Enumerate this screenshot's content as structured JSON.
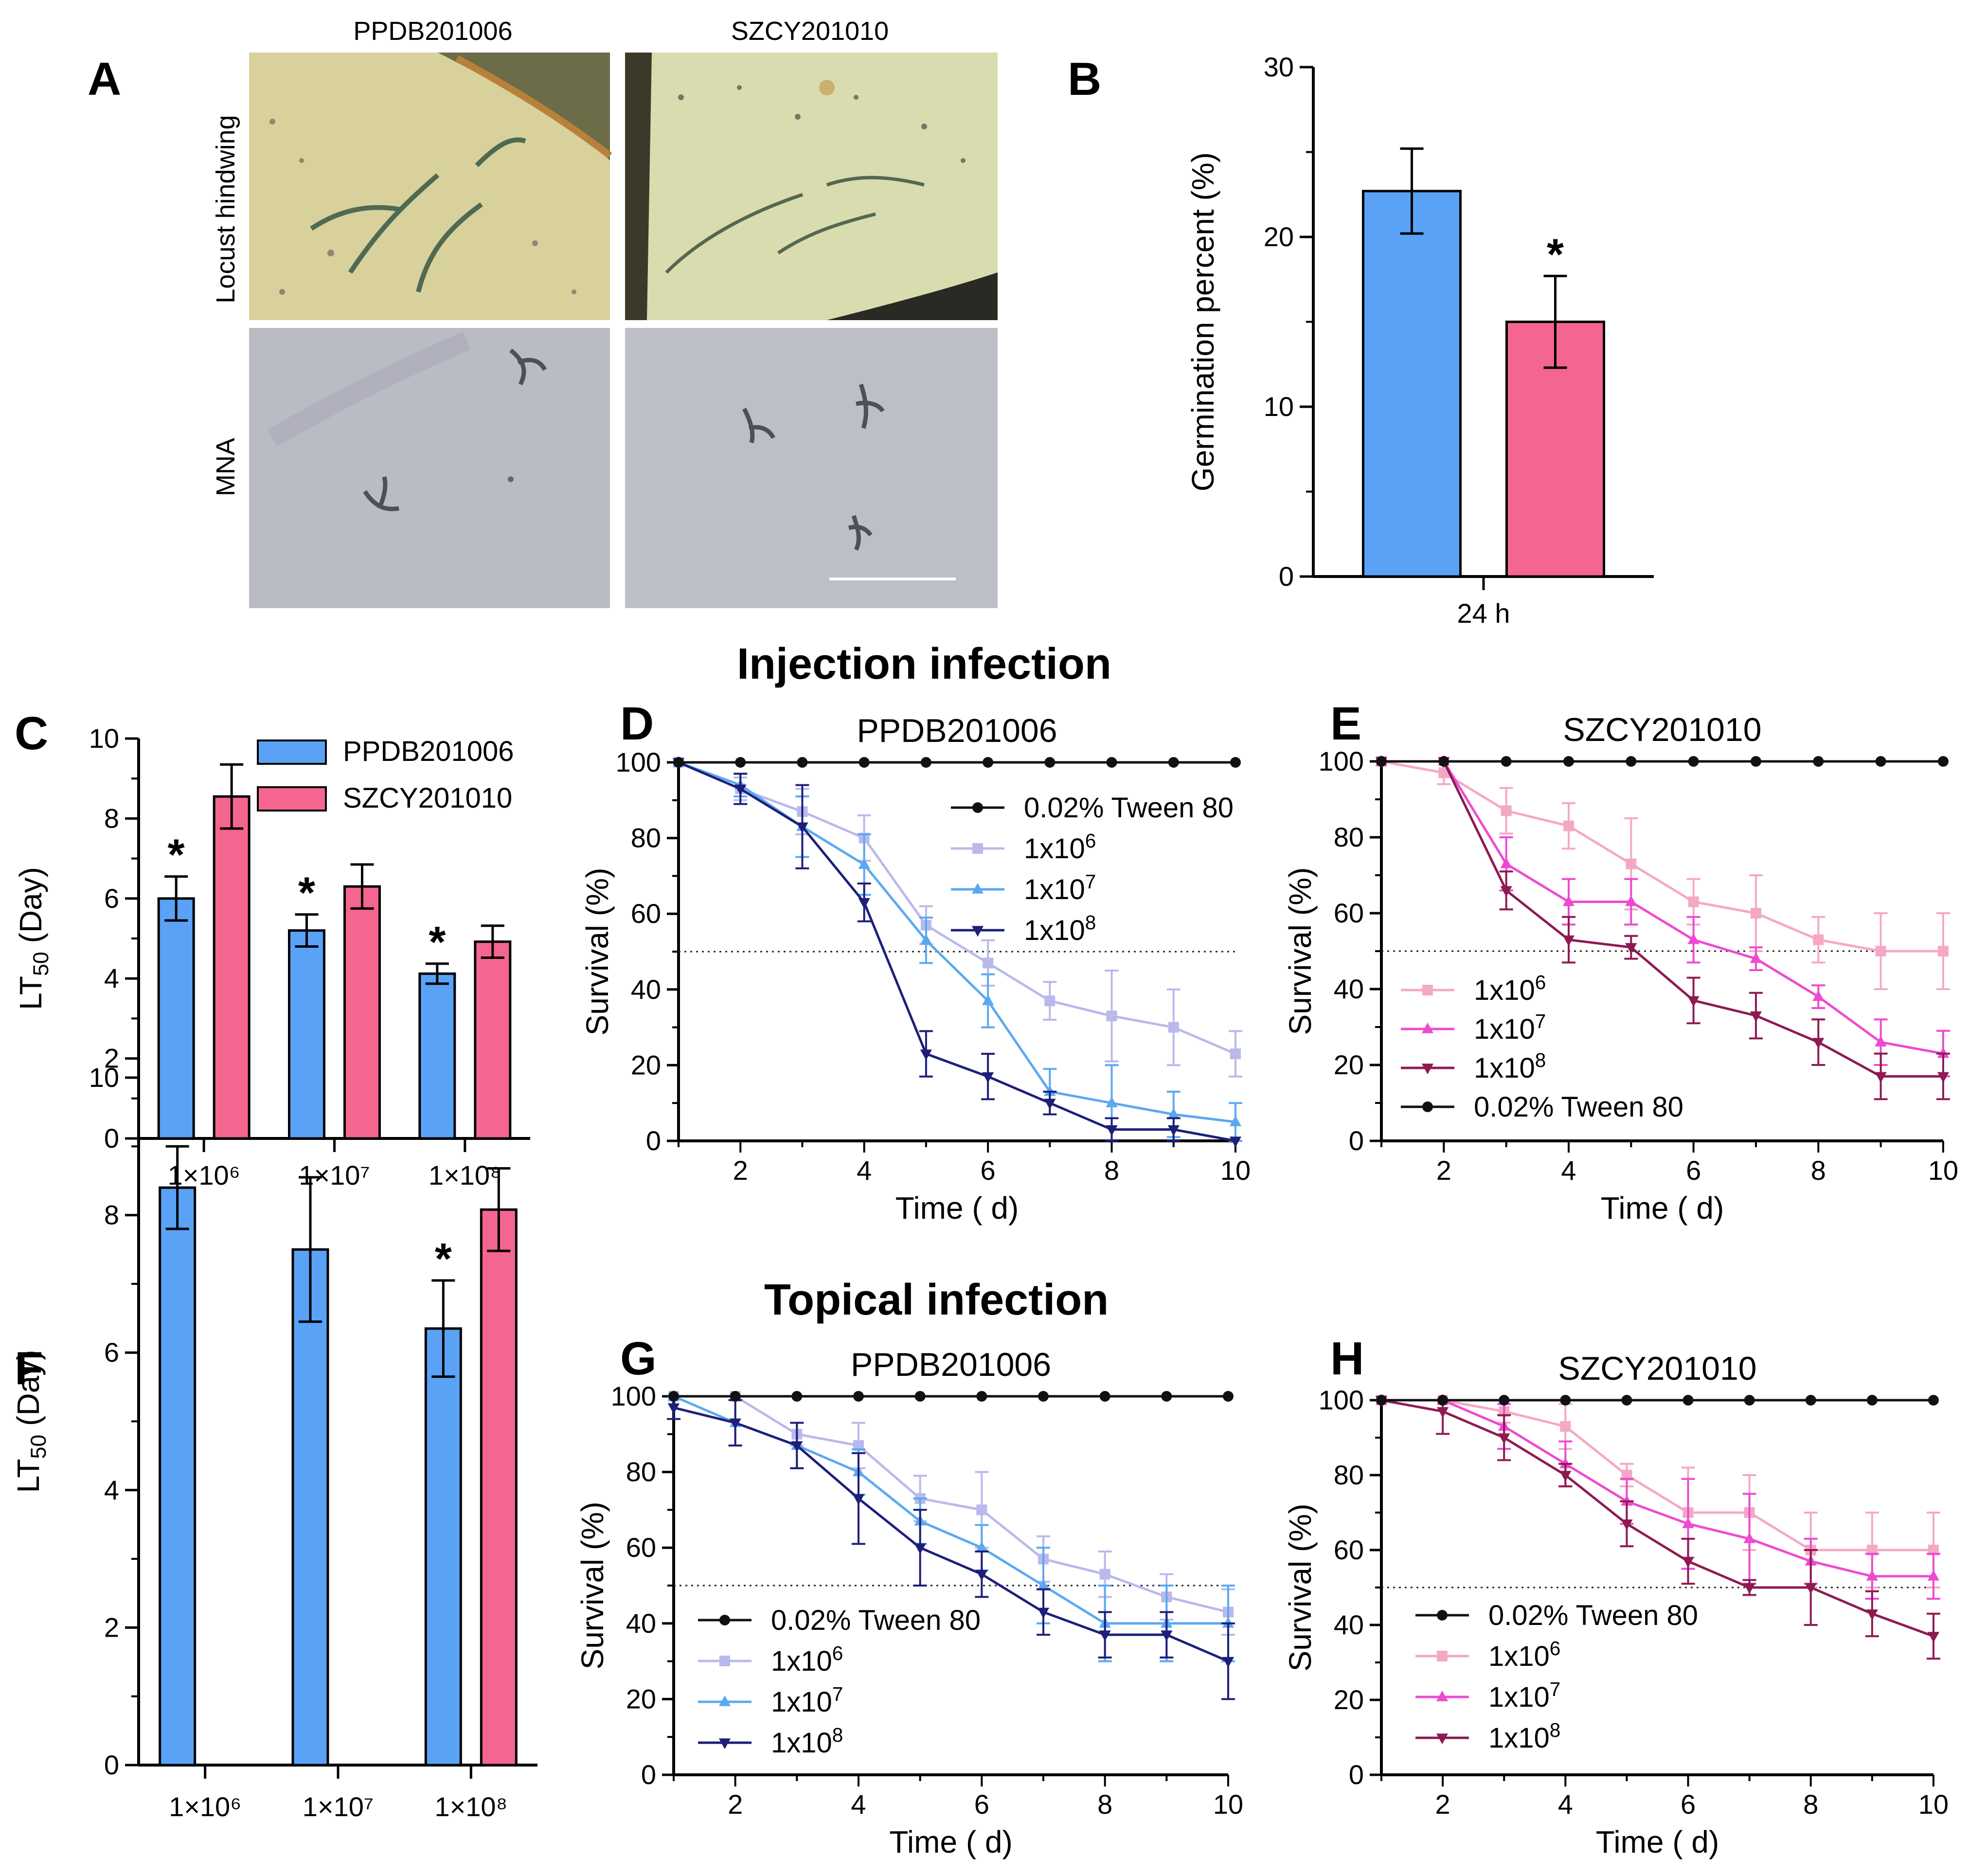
{
  "colors": {
    "blue": "#5aa2f5",
    "pink": "#f4658f",
    "black": "#111111",
    "pp_1e6": "#b9b9ec",
    "pp_1e7": "#5aa9f0",
    "pp_1e8": "#1d1f7a",
    "sz_1e6": "#f5a8c6",
    "sz_1e7": "#ee4ad0",
    "sz_1e8": "#8e1a52"
  },
  "sections": {
    "injection": "Injection infection",
    "topical": "Topical infection"
  },
  "panelA": {
    "letter": "A",
    "col_labels": [
      "PPDB201006",
      "SZCY201010"
    ],
    "row_labels": [
      "Locust hindwing",
      "MNA"
    ]
  },
  "chart_data": [
    {
      "panel": "B",
      "type": "bar",
      "title": "",
      "categories": [
        "24 h"
      ],
      "series": [
        {
          "name": "PPDB201006",
          "color": "#5aa2f5",
          "values": [
            22.7
          ],
          "errors": [
            2.5
          ]
        },
        {
          "name": "SZCY201010",
          "color": "#f4658f",
          "values": [
            15.0
          ],
          "errors": [
            2.7
          ]
        }
      ],
      "significance": [
        "",
        "*"
      ],
      "ylabel": "Germination percent (%)",
      "ylim": [
        0,
        30
      ],
      "yticks": [
        0,
        10,
        20,
        30
      ]
    },
    {
      "panel": "C",
      "type": "bar",
      "categories": [
        "1×10⁶",
        "1×10⁷",
        "1×10⁸"
      ],
      "series": [
        {
          "name": "PPDB201006",
          "color": "#5aa2f5",
          "values": [
            6.0,
            5.2,
            4.12
          ],
          "errors": [
            0.55,
            0.4,
            0.25
          ],
          "sig": [
            "*",
            "*",
            "*"
          ]
        },
        {
          "name": "SZCY201010",
          "color": "#f4658f",
          "values": [
            8.55,
            6.3,
            4.92
          ],
          "errors": [
            0.8,
            0.55,
            0.4
          ],
          "sig": [
            "",
            "",
            ""
          ]
        }
      ],
      "ylabel": "LT50 (Day)",
      "ylim": [
        0,
        10
      ],
      "yticks": [
        0,
        2,
        4,
        6,
        8,
        10
      ],
      "legend": "top-right"
    },
    {
      "panel": "D",
      "type": "line",
      "title": "PPDB201006",
      "x": [
        1,
        2,
        3,
        4,
        5,
        6,
        7,
        8,
        9,
        10
      ],
      "series": [
        {
          "name": "0.02% Tween 80",
          "color": "#111111",
          "marker": "circle",
          "values": [
            100,
            100,
            100,
            100,
            100,
            100,
            100,
            100,
            100,
            100
          ],
          "errors": [
            0,
            0,
            0,
            0,
            0,
            0,
            0,
            0,
            0,
            0
          ]
        },
        {
          "name": "1x10^6",
          "color": "#b9b9ec",
          "marker": "square",
          "values": [
            100,
            93,
            87,
            80,
            57,
            47,
            37,
            33,
            30,
            23
          ],
          "errors": [
            0,
            3,
            6,
            6,
            5,
            6,
            5,
            12,
            10,
            6
          ]
        },
        {
          "name": "1x10^7",
          "color": "#5aa9f0",
          "marker": "triangle",
          "values": [
            100,
            94,
            83,
            73,
            53,
            37,
            13,
            10,
            7,
            5
          ],
          "errors": [
            0,
            3,
            8,
            8,
            6,
            7,
            6,
            10,
            6,
            5
          ]
        },
        {
          "name": "1x10^8",
          "color": "#1d1f7a",
          "marker": "tri-down",
          "values": [
            100,
            93,
            83,
            63,
            23,
            17,
            10,
            3,
            3,
            0
          ],
          "errors": [
            0,
            4,
            11,
            5,
            6,
            6,
            3,
            3,
            3,
            0
          ]
        }
      ],
      "legend_order": [
        0,
        1,
        2,
        3
      ],
      "ref_line": 50,
      "xlabel": "Time ( d)",
      "ylabel": "Survival (%)",
      "xlim": [
        1,
        10
      ],
      "xticks": [
        2,
        4,
        6,
        8,
        10
      ],
      "ylim": [
        0,
        100
      ],
      "yticks": [
        0,
        20,
        40,
        60,
        80,
        100
      ]
    },
    {
      "panel": "E",
      "type": "line",
      "title": "SZCY201010",
      "x": [
        1,
        2,
        3,
        4,
        5,
        6,
        7,
        8,
        9,
        10
      ],
      "series": [
        {
          "name": "0.02% Tween 80",
          "color": "#111111",
          "marker": "circle",
          "values": [
            100,
            100,
            100,
            100,
            100,
            100,
            100,
            100,
            100,
            100
          ],
          "errors": [
            0,
            0,
            0,
            0,
            0,
            0,
            0,
            0,
            0,
            0
          ]
        },
        {
          "name": "1x10^6",
          "color": "#f5a8c6",
          "marker": "square",
          "values": [
            100,
            97,
            87,
            83,
            73,
            63,
            60,
            53,
            50,
            50
          ],
          "errors": [
            0,
            3,
            6,
            6,
            12,
            6,
            10,
            6,
            10,
            10
          ]
        },
        {
          "name": "1x10^7",
          "color": "#ee4ad0",
          "marker": "triangle",
          "values": [
            100,
            100,
            73,
            63,
            63,
            53,
            48,
            38,
            26,
            23
          ],
          "errors": [
            0,
            0,
            7,
            6,
            6,
            6,
            3,
            3,
            6,
            6
          ]
        },
        {
          "name": "1x10^8",
          "color": "#8e1a52",
          "marker": "tri-down",
          "values": [
            100,
            100,
            66,
            53,
            51,
            37,
            33,
            26,
            17,
            17
          ],
          "errors": [
            0,
            0,
            5,
            6,
            3,
            6,
            6,
            6,
            6,
            6
          ]
        }
      ],
      "legend_order": [
        1,
        2,
        3,
        0
      ],
      "ref_line": 50,
      "xlabel": "Time ( d)",
      "ylabel": "Survival (%)",
      "xlim": [
        1,
        10
      ],
      "xticks": [
        2,
        4,
        6,
        8,
        10
      ],
      "ylim": [
        0,
        100
      ],
      "yticks": [
        0,
        20,
        40,
        60,
        80,
        100
      ]
    },
    {
      "panel": "F",
      "type": "bar",
      "categories": [
        "1×10⁶",
        "1×10⁷",
        "1×10⁸"
      ],
      "series": [
        {
          "name": "PPDB201006",
          "color": "#5aa2f5",
          "values": [
            8.4,
            7.5,
            6.35
          ],
          "errors": [
            0.6,
            1.05,
            0.7
          ],
          "sig": [
            "",
            "",
            "*"
          ]
        },
        {
          "name": "SZCY201010",
          "color": "#f4658f",
          "values": [
            null,
            null,
            8.08
          ],
          "errors": [
            0,
            0,
            0.6
          ],
          "sig": [
            "",
            "",
            ""
          ]
        }
      ],
      "ylabel": "LT50 (Day)",
      "ylim": [
        0,
        10
      ],
      "yticks": [
        0,
        2,
        4,
        6,
        8,
        10
      ]
    },
    {
      "panel": "G",
      "type": "line",
      "title": "PPDB201006",
      "x": [
        1,
        2,
        3,
        4,
        5,
        6,
        7,
        8,
        9,
        10
      ],
      "series": [
        {
          "name": "0.02% Tween 80",
          "color": "#111111",
          "marker": "circle",
          "values": [
            100,
            100,
            100,
            100,
            100,
            100,
            100,
            100,
            100,
            100
          ],
          "errors": [
            0,
            0,
            0,
            0,
            0,
            0,
            0,
            0,
            0,
            0
          ]
        },
        {
          "name": "1x10^6",
          "color": "#b9b9ec",
          "marker": "square",
          "values": [
            100,
            100,
            90,
            87,
            73,
            70,
            57,
            53,
            47,
            43
          ],
          "errors": [
            0,
            0,
            3,
            6,
            6,
            10,
            6,
            6,
            6,
            6
          ]
        },
        {
          "name": "1x10^7",
          "color": "#5aa9f0",
          "marker": "triangle",
          "values": [
            100,
            93,
            87,
            80,
            67,
            60,
            50,
            40,
            40,
            40
          ],
          "errors": [
            0,
            6,
            6,
            6,
            6,
            6,
            10,
            10,
            10,
            10
          ]
        },
        {
          "name": "1x10^8",
          "color": "#1d1f7a",
          "marker": "tri-down",
          "values": [
            97,
            93,
            87,
            73,
            60,
            53,
            43,
            37,
            37,
            30
          ],
          "errors": [
            3,
            6,
            6,
            12,
            10,
            6,
            6,
            6,
            6,
            10
          ]
        }
      ],
      "legend_order": [
        0,
        1,
        2,
        3
      ],
      "ref_line": 50,
      "xlabel": "Time ( d)",
      "ylabel": "Survival (%)",
      "xlim": [
        1,
        10
      ],
      "xticks": [
        2,
        4,
        6,
        8,
        10
      ],
      "ylim": [
        0,
        100
      ],
      "yticks": [
        0,
        20,
        40,
        60,
        80,
        100
      ]
    },
    {
      "panel": "H",
      "type": "line",
      "title": "SZCY201010",
      "x": [
        1,
        2,
        3,
        4,
        5,
        6,
        7,
        8,
        9,
        10
      ],
      "series": [
        {
          "name": "0.02% Tween 80",
          "color": "#111111",
          "marker": "circle",
          "values": [
            100,
            100,
            100,
            100,
            100,
            100,
            100,
            100,
            100,
            100
          ],
          "errors": [
            0,
            0,
            0,
            0,
            0,
            0,
            0,
            0,
            0,
            0
          ]
        },
        {
          "name": "1x10^6",
          "color": "#f5a8c6",
          "marker": "square",
          "values": [
            100,
            100,
            97,
            93,
            80,
            70,
            70,
            60,
            60,
            60
          ],
          "errors": [
            0,
            0,
            3,
            6,
            3,
            12,
            10,
            10,
            10,
            10
          ]
        },
        {
          "name": "1x10^7",
          "color": "#ee4ad0",
          "marker": "triangle",
          "values": [
            100,
            100,
            93,
            83,
            73,
            67,
            63,
            57,
            53,
            53
          ],
          "errors": [
            0,
            0,
            6,
            6,
            6,
            12,
            12,
            6,
            6,
            6
          ]
        },
        {
          "name": "1x10^8",
          "color": "#8e1a52",
          "marker": "tri-down",
          "values": [
            100,
            97,
            90,
            80,
            67,
            57,
            50,
            50,
            43,
            37
          ],
          "errors": [
            0,
            6,
            6,
            3,
            6,
            6,
            2,
            10,
            6,
            6
          ]
        }
      ],
      "legend_order": [
        0,
        1,
        2,
        3
      ],
      "ref_line": 50,
      "xlabel": "Time ( d)",
      "ylabel": "Survival (%)",
      "xlim": [
        1,
        10
      ],
      "xticks": [
        2,
        4,
        6,
        8,
        10
      ],
      "ylim": [
        0,
        100
      ],
      "yticks": [
        0,
        20,
        40,
        60,
        80,
        100
      ]
    }
  ]
}
